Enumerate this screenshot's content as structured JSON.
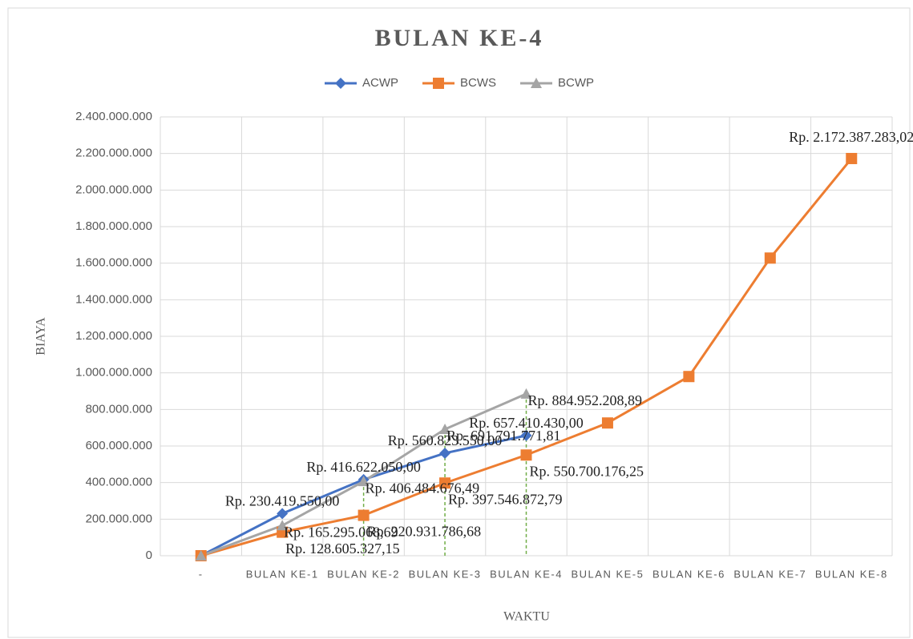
{
  "chart_data": {
    "type": "line",
    "title": "BULAN KE-4",
    "x_label": "WAKTU",
    "y_label": "BIAYA",
    "categories": [
      "-",
      "BULAN KE-1",
      "BULAN KE-2",
      "BULAN KE-3",
      "BULAN KE-4",
      "BULAN KE-5",
      "BULAN KE-6",
      "BULAN KE-7",
      "BULAN KE-8"
    ],
    "series": [
      {
        "name": "ACWP",
        "color": "#4472c4",
        "marker": "diamond",
        "values": [
          0,
          230419550.0,
          416622050.0,
          560823550.0,
          657410430.0,
          null,
          null,
          null,
          null
        ],
        "value_labels": [
          null,
          "Rp. 230.419.550,00",
          "Rp. 416.622.050,00",
          "Rp. 560.823.550,00",
          "Rp. 657.410.430,00",
          null,
          null,
          null,
          null
        ]
      },
      {
        "name": "BCWS",
        "color": "#ed7d31",
        "marker": "square",
        "values": [
          0,
          128605327.15,
          220931786.68,
          397546872.79,
          550700176.25,
          726000000,
          980000000,
          1628000000,
          2172387283.02
        ],
        "value_labels": [
          null,
          "Rp. 128.605.327,15",
          "Rp. 220.931.786,68",
          "Rp. 397.546.872,79",
          "Rp. 550.700.176,25",
          null,
          null,
          null,
          "Rp. 2.172.387.283,02"
        ]
      },
      {
        "name": "BCWP",
        "color": "#a5a5a5",
        "marker": "triangle",
        "values": [
          0,
          165295068.69,
          406484676.49,
          691791771.81,
          884952208.89,
          null,
          null,
          null,
          null
        ],
        "value_labels": [
          null,
          "Rp. 165.295.068,69",
          "Rp. 406.484.676,49",
          "Rp. 691.791.771,81",
          "Rp. 884.952.208,89",
          null,
          null,
          null,
          null
        ]
      }
    ],
    "ylim": [
      0,
      2400000000
    ],
    "yticks": [
      0,
      {
        "value": 200000000,
        "label": "200.000.000"
      },
      {
        "value": 400000000,
        "label": "400.000.000"
      },
      {
        "value": 600000000,
        "label": "600.000.000"
      },
      {
        "value": 800000000,
        "label": "800.000.000"
      },
      {
        "value": 1000000000,
        "label": "1.000.000.000"
      },
      {
        "value": 1200000000,
        "label": "1.200.000.000"
      },
      {
        "value": 1400000000,
        "label": "1.400.000.000"
      },
      {
        "value": 1600000000,
        "label": "1.600.000.000"
      },
      {
        "value": 1800000000,
        "label": "1.800.000.000"
      },
      {
        "value": 2000000000,
        "label": "2.000.000.000"
      },
      {
        "value": 2200000000,
        "label": "2.200.000.000"
      },
      {
        "value": 2400000000,
        "label": "2.400.000.000"
      }
    ],
    "grid": true,
    "legend": "top"
  }
}
